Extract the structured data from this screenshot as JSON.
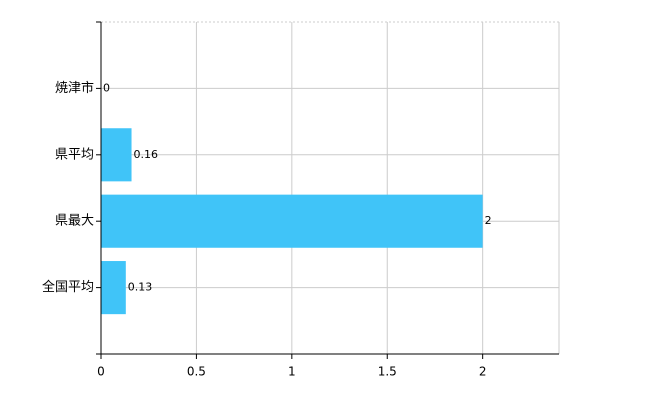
{
  "chart_data": {
    "type": "bar",
    "orientation": "horizontal",
    "categories": [
      "焼津市",
      "県平均",
      "県最大",
      "全国平均"
    ],
    "values": [
      0,
      0.16,
      2,
      0.13
    ],
    "color": "#40c4f8",
    "xlim": [
      0,
      2.4
    ],
    "xticks": [
      0,
      0.5,
      1,
      1.5,
      2
    ],
    "grid": true
  }
}
